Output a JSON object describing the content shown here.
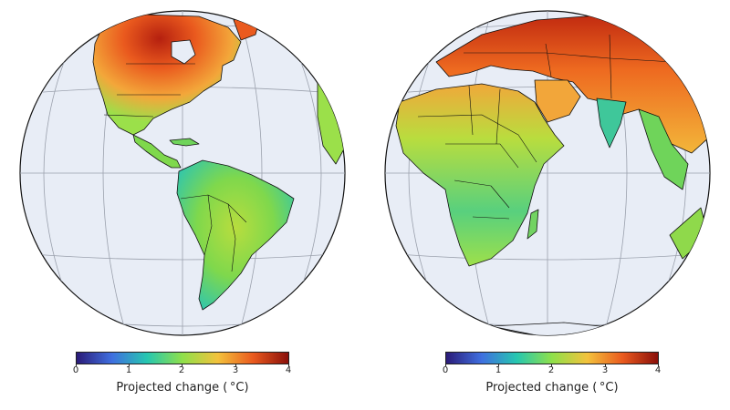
{
  "colors": {
    "ocean": "#e8edf6",
    "border": "#111111",
    "grid": "#9aa0ac",
    "scale": [
      "#2b1b78",
      "#3f6fe0",
      "#26c7b0",
      "#8fe04a",
      "#f3c23c",
      "#ea5a1e",
      "#8a0f0a"
    ]
  },
  "panels": [
    {
      "name": "americas",
      "colorbar": {
        "ticks": [
          "0",
          "1",
          "2",
          "3",
          "4"
        ],
        "label": "Projected change ( °C)"
      }
    },
    {
      "name": "africa-eurasia",
      "colorbar": {
        "ticks": [
          "0",
          "1",
          "2",
          "3",
          "4"
        ],
        "label": "Projected change ( °C)"
      }
    }
  ]
}
